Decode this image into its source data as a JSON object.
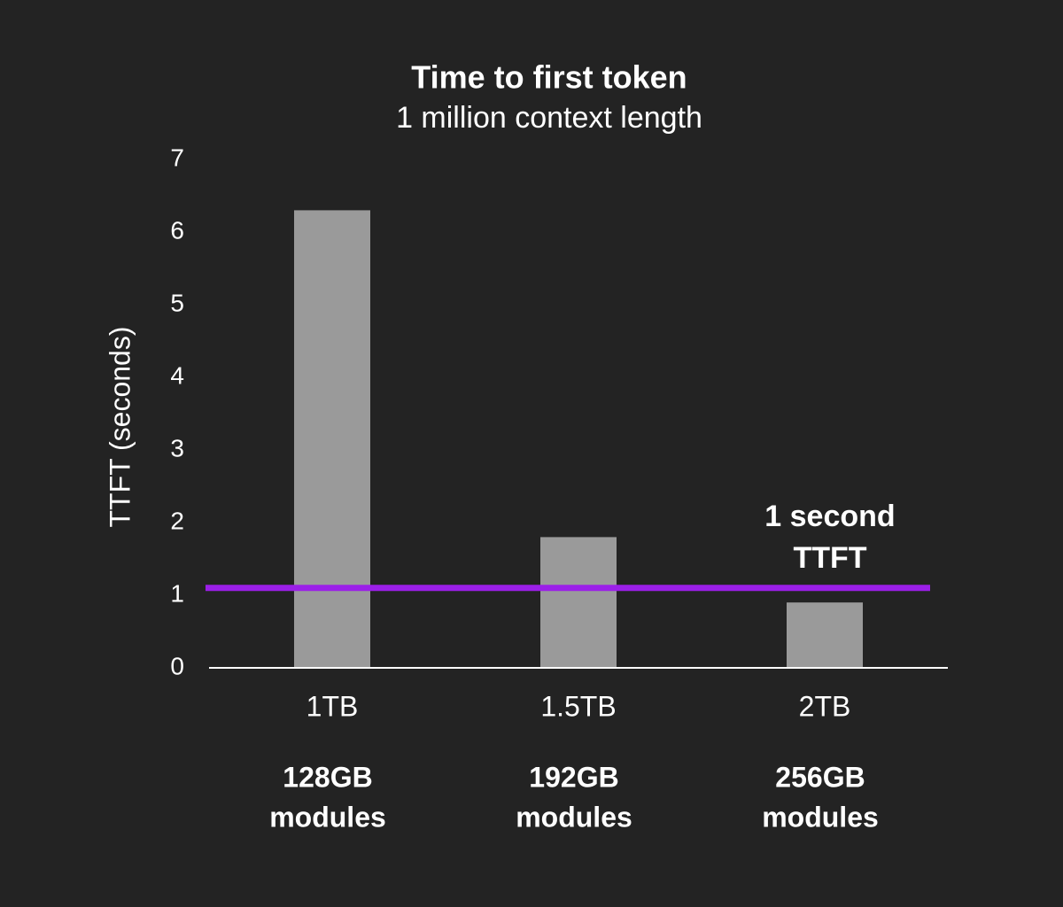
{
  "chart_data": {
    "type": "bar",
    "title": "Time to first token",
    "subtitle": "1 million context length",
    "y_label": "TTFT (seconds)",
    "categories": [
      "1TB",
      "1.5TB",
      "2TB"
    ],
    "category_sublabels": [
      [
        "128GB",
        "modules"
      ],
      [
        "192GB",
        "modules"
      ],
      [
        "256GB",
        "modules"
      ]
    ],
    "values": [
      6.3,
      1.8,
      0.9
    ],
    "color": "#9a9a9a",
    "ylim": [
      0,
      7
    ],
    "yticks": [
      0,
      1,
      2,
      3,
      4,
      5,
      6,
      7
    ],
    "grid": false,
    "reference_line": {
      "value": 1.1,
      "color": "#9b1fe8",
      "label_lines": [
        "1 second",
        "TTFT"
      ]
    }
  }
}
